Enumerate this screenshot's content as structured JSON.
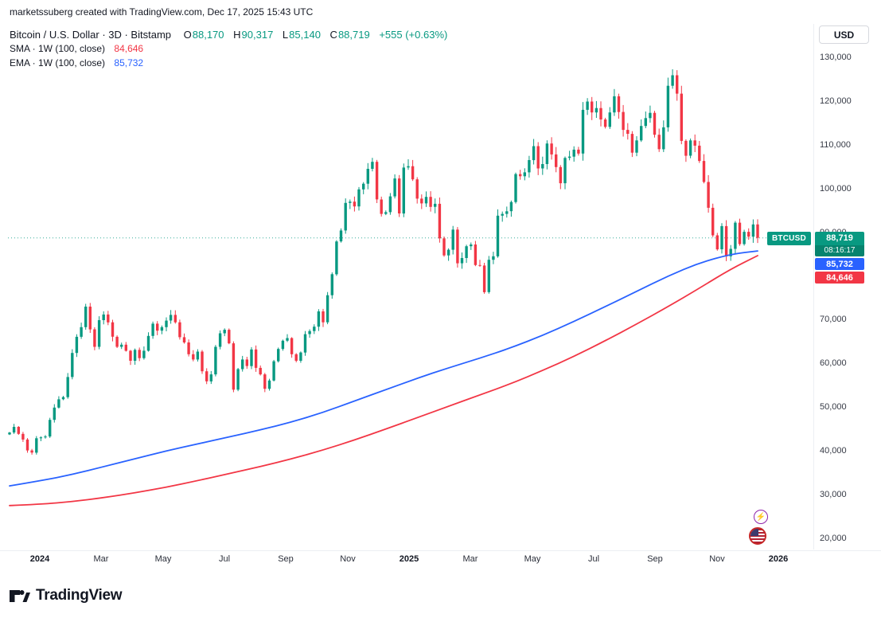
{
  "attribution": "marketssuberg created with TradingView.com, Dec 17, 2025 15:43 UTC",
  "legend": {
    "symbol_title": "Bitcoin / U.S. Dollar · 3D · Bitstamp",
    "ohlc": {
      "o_label": "O",
      "o_value": "88,170",
      "h_label": "H",
      "h_value": "90,317",
      "l_label": "L",
      "l_value": "85,140",
      "c_label": "C",
      "c_value": "88,719",
      "change": "+555 (+0.63%)"
    },
    "sma_label": "SMA · 1W (100, close)",
    "sma_value": "84,646",
    "ema_label": "EMA · 1W (100, close)",
    "ema_value": "85,732"
  },
  "price_scale": {
    "currency_button": "USD",
    "ticks": [
      "130,000",
      "120,000",
      "110,000",
      "100,000",
      "90,000",
      "80,000",
      "70,000",
      "60,000",
      "50,000",
      "40,000",
      "30,000",
      "20,000"
    ]
  },
  "price_flags": {
    "symbol_label": "BTCUSD",
    "last_price": "88,719",
    "countdown": "08:16:17",
    "ema_flag": "85,732",
    "sma_flag": "84,646"
  },
  "time_axis": {
    "labels": [
      "2024",
      "Mar",
      "May",
      "Jul",
      "Sep",
      "Nov",
      "2025",
      "Mar",
      "May",
      "Jul",
      "Sep",
      "Nov",
      "2026"
    ]
  },
  "footer": {
    "brand": "TradingView"
  },
  "colors": {
    "up": "#089981",
    "down": "#f23645",
    "sma_line": "#f23645",
    "ema_line": "#2962ff",
    "last_price_line": "#089981"
  },
  "chart_data": {
    "type": "candlestick",
    "symbol": "BTCUSD",
    "exchange": "Bitstamp",
    "interval": "3D",
    "title": "Bitcoin / U.S. Dollar",
    "y_axis": {
      "min": 20000,
      "max": 130000,
      "tick_step": 10000,
      "currency": "USD"
    },
    "x_range": [
      "Jan 2024",
      "Dec 2025"
    ],
    "grid": false,
    "current_price": 88719,
    "last_bar": {
      "open": 88170,
      "high": 90317,
      "low": 85140,
      "close": 88719,
      "change_abs": 555,
      "change_pct": 0.63
    },
    "unit_multiplier": 1000,
    "closes_thousands": [
      44.2,
      45.5,
      43.9,
      42.6,
      40.1,
      39.6,
      42.9,
      43.1,
      43.3,
      47.1,
      49.9,
      51.8,
      52.3,
      56.9,
      62.4,
      66.1,
      68.3,
      73.0,
      67.8,
      63.8,
      69.9,
      71.2,
      69.4,
      66.1,
      63.8,
      64.3,
      62.9,
      60.6,
      63.1,
      61.2,
      62.9,
      66.3,
      69.1,
      67.5,
      68.3,
      69.8,
      71.1,
      69.4,
      66.0,
      64.8,
      62.1,
      60.9,
      62.7,
      58.2,
      55.9,
      57.5,
      63.8,
      66.9,
      67.7,
      64.6,
      54.0,
      58.7,
      60.9,
      59.4,
      63.2,
      59.0,
      57.5,
      54.2,
      56.1,
      60.5,
      63.3,
      65.2,
      65.8,
      62.1,
      60.6,
      62.5,
      66.7,
      67.4,
      68.4,
      71.9,
      69.4,
      75.6,
      80.4,
      87.9,
      90.4,
      96.7,
      97.0,
      95.9,
      99.8,
      101.1,
      104.5,
      106.1,
      97.5,
      94.2,
      94.6,
      98.2,
      102.3,
      94.3,
      104.8,
      105.1,
      102.1,
      97.7,
      96.6,
      98.1,
      95.8,
      96.5,
      88.6,
      84.7,
      86.0,
      90.6,
      82.9,
      84.1,
      86.8,
      87.2,
      82.5,
      82.4,
      76.3,
      83.7,
      84.5,
      93.8,
      94.2,
      94.8,
      96.9,
      103.3,
      102.8,
      103.7,
      106.5,
      109.7,
      104.6,
      105.6,
      110.3,
      107.8,
      104.9,
      101.2,
      107.0,
      107.3,
      108.9,
      108.0,
      118.0,
      119.9,
      117.4,
      118.4,
      115.8,
      114.1,
      117.4,
      121.1,
      117.5,
      113.4,
      112.5,
      108.2,
      111.0,
      114.3,
      116.1,
      117.3,
      112.3,
      109.0,
      114.0,
      123.5,
      125.9,
      121.7,
      110.9,
      107.5,
      111.0,
      109.8,
      106.3,
      101.5,
      95.6,
      89.3,
      86.1,
      91.4,
      84.5,
      86.2,
      92.2,
      87.3,
      90.1,
      89.0,
      91.8,
      88.719
    ],
    "overlays": [
      {
        "name": "SMA 100 · 1W (close)",
        "color": "#f23645",
        "last_value": 84646,
        "anchors_thousands": [
          27.5,
          27.8,
          28.4,
          29.3,
          30.4,
          31.7,
          33.2,
          34.8,
          36.4,
          38.2,
          40.2,
          42.5,
          45.0,
          47.6,
          50.2,
          52.8,
          55.4,
          58.4,
          61.6,
          65.2,
          69.0,
          73.0,
          77.2,
          81.6,
          84.646
        ]
      },
      {
        "name": "EMA 100 · 1W (close)",
        "color": "#2962ff",
        "last_value": 85732,
        "anchors_thousands": [
          32.0,
          33.2,
          34.6,
          36.4,
          38.2,
          40.0,
          41.6,
          43.2,
          44.8,
          46.6,
          48.8,
          51.4,
          54.0,
          56.6,
          59.0,
          61.2,
          63.6,
          66.4,
          69.6,
          73.0,
          76.5,
          80.0,
          83.0,
          85.0,
          85.732
        ]
      }
    ],
    "time_labels": [
      "2024",
      "Mar",
      "May",
      "Jul",
      "Sep",
      "Nov",
      "2025",
      "Mar",
      "May",
      "Jul",
      "Sep",
      "Nov",
      "2026"
    ]
  }
}
